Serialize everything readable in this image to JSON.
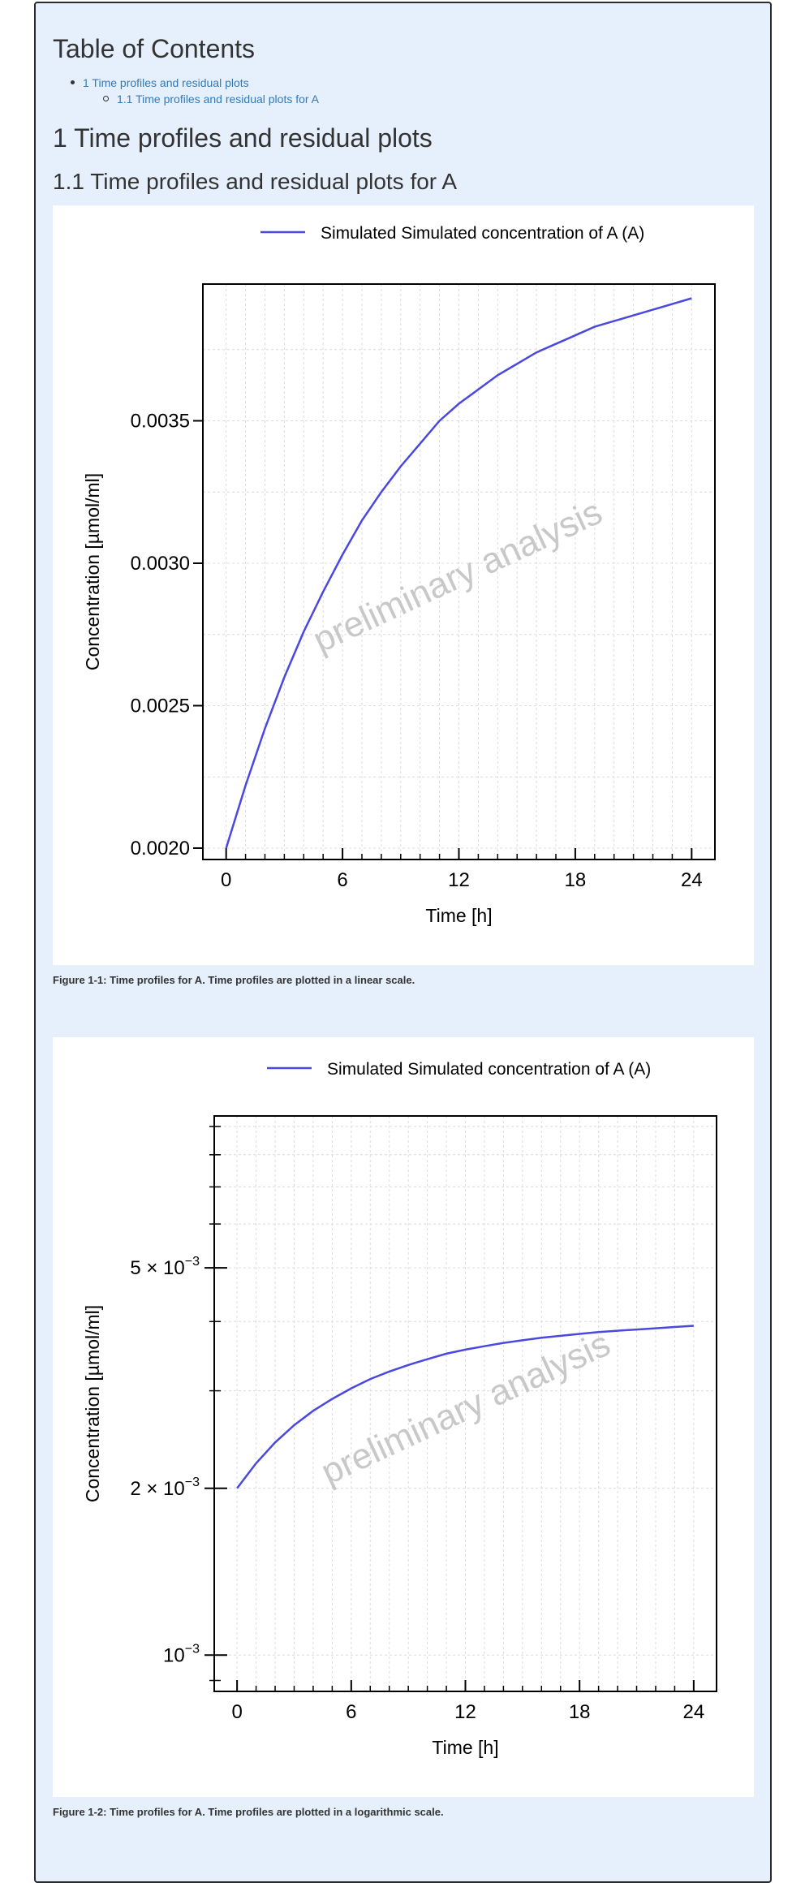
{
  "toc": {
    "title": "Table of Contents",
    "items": [
      {
        "label": "1 Time profiles and residual plots"
      },
      {
        "label": "1.1 Time profiles and residual plots for A"
      }
    ]
  },
  "section": {
    "h1": "1 Time profiles and residual plots",
    "h2": "1.1 Time profiles and residual plots for A"
  },
  "colors": {
    "line": "#4a48e0",
    "watermark": "#c8c8c8",
    "text": "#333333"
  },
  "watermark": "preliminary analysis",
  "chart_data": [
    {
      "type": "line",
      "scale": "linear",
      "title": "",
      "xlabel": "Time [h]",
      "ylabel": "Concentration [µmol/ml]",
      "xlim": [
        -1.2,
        25.2
      ],
      "ylim": [
        0.00196,
        0.00398
      ],
      "x_ticks": [
        0,
        6,
        12,
        18,
        24
      ],
      "x_tick_labels": [
        "0",
        "6",
        "12",
        "18",
        "24"
      ],
      "y_ticks": [
        0.002,
        0.0025,
        0.003,
        0.0035
      ],
      "y_tick_labels": [
        "0.0020",
        "0.0025",
        "0.0030",
        "0.0035"
      ],
      "grid": true,
      "legend": "top",
      "series": [
        {
          "name": "Simulated Simulated concentration of A (A)",
          "x": [
            0,
            1,
            2,
            3,
            4,
            5,
            6,
            7,
            8,
            9,
            10,
            11,
            12,
            13,
            14,
            15,
            16,
            17,
            18,
            19,
            20,
            21,
            22,
            23,
            24
          ],
          "y": [
            0.002,
            0.00222,
            0.00242,
            0.0026,
            0.00276,
            0.0029,
            0.00303,
            0.00315,
            0.00325,
            0.00334,
            0.00342,
            0.0035,
            0.00356,
            0.00361,
            0.00366,
            0.0037,
            0.00374,
            0.00377,
            0.0038,
            0.00383,
            0.00385,
            0.00387,
            0.00389,
            0.00391,
            0.00393
          ]
        }
      ],
      "caption": "Figure 1-1: Time profiles for A. Time profiles are plotted in a linear scale."
    },
    {
      "type": "line",
      "scale": "log",
      "title": "",
      "xlabel": "Time [h]",
      "ylabel": "Concentration [µmol/ml]",
      "xlim": [
        -1.2,
        25.2
      ],
      "ylim": [
        0.00086,
        0.0094
      ],
      "x_ticks": [
        0,
        6,
        12,
        18,
        24
      ],
      "x_tick_labels": [
        "0",
        "6",
        "12",
        "18",
        "24"
      ],
      "y_ticks": [
        0.001,
        0.002,
        0.005
      ],
      "y_tick_labels": [
        {
          "base": "10",
          "sup": "−3"
        },
        {
          "base": "2 × 10",
          "sup": "−3"
        },
        {
          "base": "5 × 10",
          "sup": "−3"
        }
      ],
      "y_minor_ticks": [
        0.003,
        0.004,
        0.006,
        0.007,
        0.008,
        0.009
      ],
      "grid": true,
      "legend": "top",
      "series": [
        {
          "name": "Simulated Simulated concentration of A (A)",
          "x": [
            0,
            1,
            2,
            3,
            4,
            5,
            6,
            7,
            8,
            9,
            10,
            11,
            12,
            13,
            14,
            15,
            16,
            17,
            18,
            19,
            20,
            21,
            22,
            23,
            24
          ],
          "y": [
            0.002,
            0.00222,
            0.00242,
            0.0026,
            0.00276,
            0.0029,
            0.00303,
            0.00315,
            0.00325,
            0.00334,
            0.00342,
            0.0035,
            0.00356,
            0.00361,
            0.00366,
            0.0037,
            0.00374,
            0.00377,
            0.0038,
            0.00383,
            0.00385,
            0.00387,
            0.00389,
            0.00391,
            0.00393
          ]
        }
      ],
      "caption": "Figure 1-2: Time profiles for A. Time profiles are plotted in a logarithmic scale."
    }
  ]
}
